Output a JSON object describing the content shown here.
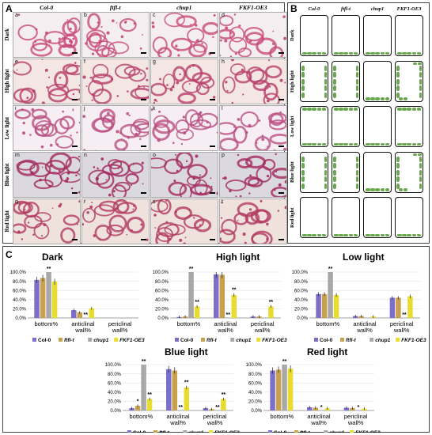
{
  "panelA": {
    "letter": "A",
    "columns": [
      "Col-0",
      "ftfl-t",
      "chup1",
      "FKF1-OE3"
    ],
    "rows": [
      {
        "label": "Dark",
        "subs": [
          "a",
          "b",
          "c",
          "d"
        ],
        "bg": "#f5eef0",
        "ink": "#c84a78"
      },
      {
        "label": "High light",
        "subs": [
          "e",
          "f",
          "g",
          "h"
        ],
        "bg": "#f3e6e3",
        "ink": "#b8406a"
      },
      {
        "label": "Low light",
        "subs": [
          "i",
          "j",
          "k",
          "l"
        ],
        "bg": "#f6eef2",
        "ink": "#b94f82"
      },
      {
        "label": "Blue light",
        "subs": [
          "m",
          "n",
          "o",
          "p"
        ],
        "bg": "#dcd8e0",
        "ink": "#a32b5e"
      },
      {
        "label": "Red light",
        "subs": [
          "q",
          "r",
          "s",
          "t"
        ],
        "bg": "#efe2dc",
        "ink": "#b23b61"
      }
    ]
  },
  "panelB": {
    "letter": "B",
    "columns": [
      "Col-0",
      "ftfl-t",
      "chup1",
      "FKF1-OE3"
    ],
    "rows": [
      "Dark",
      "High light",
      "Low light",
      "Blue light",
      "Red light"
    ],
    "chloroplast_color": "#6aa84f"
  },
  "panelC": {
    "letter": "C",
    "legend": [
      "Col-0",
      "ftfl-t",
      "chup1",
      "FKF1-OE3"
    ],
    "colors": [
      "#7b6fc9",
      "#c9a04b",
      "#a8a8a8",
      "#e8dc2f"
    ]
  },
  "chart_data": [
    {
      "type": "bar",
      "title": "Dark",
      "categories": [
        "bottom%",
        "anticlinal wall%",
        "periclinal wall%"
      ],
      "yticks": [
        "0.0%",
        "20.0%",
        "40.0%",
        "60.0%",
        "80.0%",
        "100.0%"
      ],
      "ylim": [
        0,
        100
      ],
      "series": [
        {
          "name": "Col-0",
          "values": [
            83,
            17,
            0
          ]
        },
        {
          "name": "ftfl-t",
          "values": [
            87,
            12,
            0
          ]
        },
        {
          "name": "chup1",
          "values": [
            100,
            0,
            0
          ]
        },
        {
          "name": "FKF1-OE3",
          "values": [
            79,
            21,
            0
          ]
        }
      ],
      "annotations": [
        {
          "category": 0,
          "series": 2,
          "text": "**"
        },
        {
          "category": 1,
          "series": 2,
          "text": "**"
        }
      ]
    },
    {
      "type": "bar",
      "title": "High light",
      "categories": [
        "bottom%",
        "anticlinal wall%",
        "periclinal wall%"
      ],
      "yticks": [
        "0.0%",
        "20.0%",
        "40.0%",
        "60.0%",
        "80.0%",
        "100.0%"
      ],
      "ylim": [
        0,
        100
      ],
      "series": [
        {
          "name": "Col-0",
          "values": [
            2,
            95,
            3
          ]
        },
        {
          "name": "ftfl-t",
          "values": [
            3,
            94,
            3
          ]
        },
        {
          "name": "chup1",
          "values": [
            100,
            0,
            0
          ]
        },
        {
          "name": "FKF1-OE3",
          "values": [
            25,
            50,
            25
          ]
        }
      ],
      "annotations": [
        {
          "category": 0,
          "series": 2,
          "text": "**"
        },
        {
          "category": 0,
          "series": 3,
          "text": "**"
        },
        {
          "category": 1,
          "series": 2,
          "text": "**"
        },
        {
          "category": 1,
          "series": 3,
          "text": "**"
        },
        {
          "category": 2,
          "series": 3,
          "text": "**"
        }
      ]
    },
    {
      "type": "bar",
      "title": "Low light",
      "categories": [
        "bottom%",
        "anticlinal wall%",
        "periclinal wall%"
      ],
      "yticks": [
        "0.0%",
        "20.0%",
        "40.0%",
        "60.0%",
        "80.0%",
        "100.0%"
      ],
      "ylim": [
        0,
        100
      ],
      "series": [
        {
          "name": "Col-0",
          "values": [
            52,
            4,
            44
          ]
        },
        {
          "name": "ftfl-t",
          "values": [
            52,
            4,
            44
          ]
        },
        {
          "name": "chup1",
          "values": [
            100,
            0,
            0
          ]
        },
        {
          "name": "FKF1-OE3",
          "values": [
            50,
            3,
            47
          ]
        }
      ],
      "annotations": [
        {
          "category": 0,
          "series": 2,
          "text": "**"
        },
        {
          "category": 2,
          "series": 2,
          "text": "**"
        }
      ]
    },
    {
      "type": "bar",
      "title": "Blue light",
      "categories": [
        "bottom%",
        "anticlinal wall%",
        "periclinal wall%"
      ],
      "yticks": [
        "0.0%",
        "20.0%",
        "40.0%",
        "60.0%",
        "80.0%",
        "100.0%"
      ],
      "ylim": [
        0,
        100
      ],
      "series": [
        {
          "name": "Col-0",
          "values": [
            5,
            90,
            5
          ]
        },
        {
          "name": "ftfl-t",
          "values": [
            10,
            87,
            3
          ]
        },
        {
          "name": "chup1",
          "values": [
            100,
            0,
            0
          ]
        },
        {
          "name": "FKF1-OE3",
          "values": [
            25,
            50,
            25
          ]
        }
      ],
      "annotations": [
        {
          "category": 0,
          "series": 1,
          "text": "*"
        },
        {
          "category": 0,
          "series": 2,
          "text": "**"
        },
        {
          "category": 0,
          "series": 3,
          "text": "**"
        },
        {
          "category": 1,
          "series": 2,
          "text": "**"
        },
        {
          "category": 1,
          "series": 3,
          "text": "**"
        },
        {
          "category": 2,
          "series": 2,
          "text": "**"
        },
        {
          "category": 2,
          "series": 3,
          "text": "**"
        }
      ]
    },
    {
      "type": "bar",
      "title": "Red light",
      "categories": [
        "bottom%",
        "anticlinal wall%",
        "periclinal wall%"
      ],
      "yticks": [
        "0.0%",
        "20.0%",
        "40.0%",
        "60.0%",
        "80.0%",
        "100.0%"
      ],
      "ylim": [
        0,
        100
      ],
      "series": [
        {
          "name": "Col-0",
          "values": [
            87,
            7,
            6
          ]
        },
        {
          "name": "ftfl-t",
          "values": [
            89,
            6,
            5
          ]
        },
        {
          "name": "chup1",
          "values": [
            100,
            0,
            0
          ]
        },
        {
          "name": "FKF1-OE3",
          "values": [
            91,
            5,
            4
          ]
        }
      ],
      "annotations": [
        {
          "category": 0,
          "series": 2,
          "text": "**"
        },
        {
          "category": 1,
          "series": 2,
          "text": "*"
        },
        {
          "category": 2,
          "series": 2,
          "text": "*"
        }
      ]
    }
  ]
}
